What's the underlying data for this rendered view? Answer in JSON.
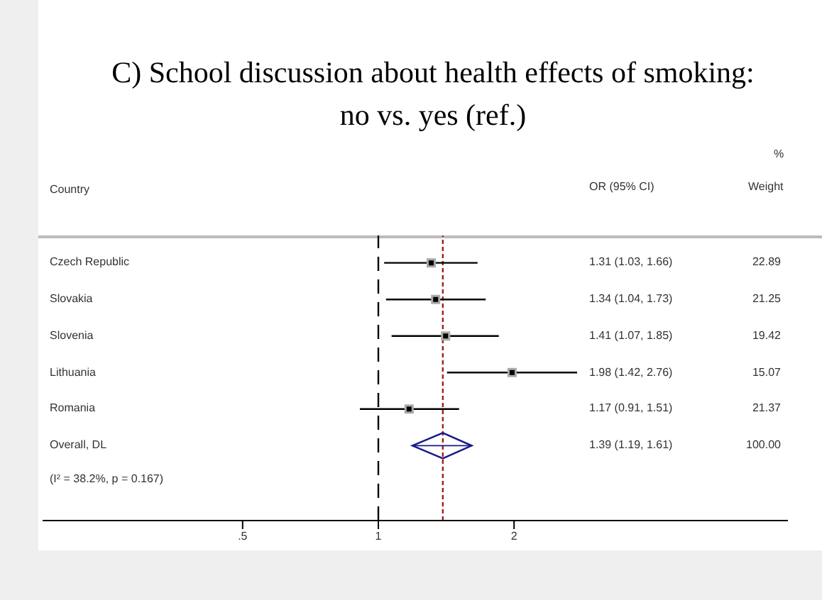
{
  "chart_data": {
    "type": "scatter",
    "orientation": "horizontal",
    "title": "C)  School discussion about health effects of smoking: no vs. yes (ref.)",
    "ylabel": "Country",
    "categories": [
      "Czech Republic",
      "Slovakia",
      "Slovenia",
      "Lithuania",
      "Romania",
      "Overall, DL"
    ],
    "log": "x",
    "xlim": [
      0.18,
      8.1
    ],
    "xticks": [
      {
        "value": 0.5,
        "label": ".5"
      },
      1,
      2
    ],
    "series": [
      {
        "color": "#000000",
        "marker": "square",
        "values": [
          1.31,
          1.34,
          1.41,
          1.98,
          1.17,
          null
        ],
        "errors": [
          [
            1.03,
            1.66
          ],
          [
            1.04,
            1.73
          ],
          [
            1.07,
            1.85
          ],
          [
            1.42,
            2.76
          ],
          [
            0.91,
            1.51
          ],
          null
        ]
      },
      {
        "color": "#1a1a8c",
        "marker": "diamond",
        "values": [
          null,
          null,
          null,
          null,
          null,
          1.39
        ],
        "errors": [
          null,
          null,
          null,
          null,
          null,
          [
            1.19,
            1.61
          ]
        ]
      }
    ],
    "ref_lines": [
      {
        "axis": "x",
        "value": 1,
        "color": "#000000",
        "line_style": "dashed"
      },
      {
        "axis": "x",
        "value": 1.39,
        "color": "#a02020",
        "line_style": "dotted"
      }
    ],
    "annotations": [
      "%",
      "OR (95% CI)",
      "Weight",
      "(I² = 38.2%, p = 0.167)",
      "22.89",
      "21.25",
      "19.42",
      "15.07",
      "21.37",
      "100.00",
      "1.31 (1.03, 1.66)",
      "1.34 (1.04, 1.73)",
      "1.41 (1.07, 1.85)",
      "1.98 (1.42, 2.76)",
      "1.17 (0.91, 1.51)",
      "1.39 (1.19, 1.61)"
    ]
  }
}
